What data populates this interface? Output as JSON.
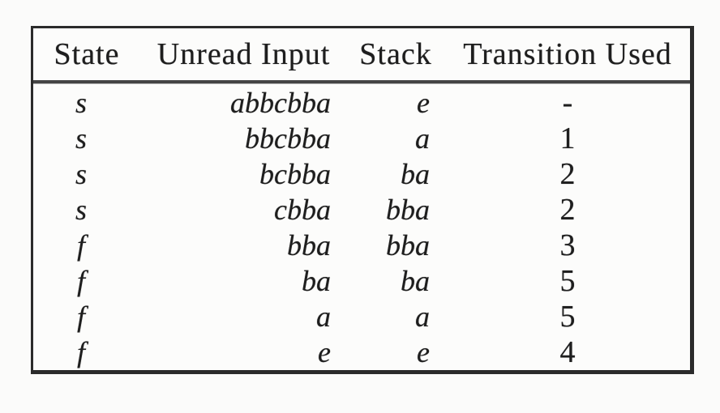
{
  "page": {
    "background_color": "#fbfbfa",
    "text_color": "#1e1e1e",
    "border_color": "#2b2b2b"
  },
  "table": {
    "headers": [
      "State",
      "Unread Input",
      "Stack",
      "Transition Used"
    ],
    "rows": [
      [
        "s",
        "abbcbba",
        "e",
        "-"
      ],
      [
        "s",
        "bbcbba",
        "a",
        "1"
      ],
      [
        "s",
        "bcbba",
        "ba",
        "2"
      ],
      [
        "s",
        "cbba",
        "bba",
        "2"
      ],
      [
        "f",
        "bba",
        "bba",
        "3"
      ],
      [
        "f",
        "ba",
        "ba",
        "5"
      ],
      [
        "f",
        "a",
        "a",
        "5"
      ],
      [
        "f",
        "e",
        "e",
        "4"
      ]
    ]
  }
}
